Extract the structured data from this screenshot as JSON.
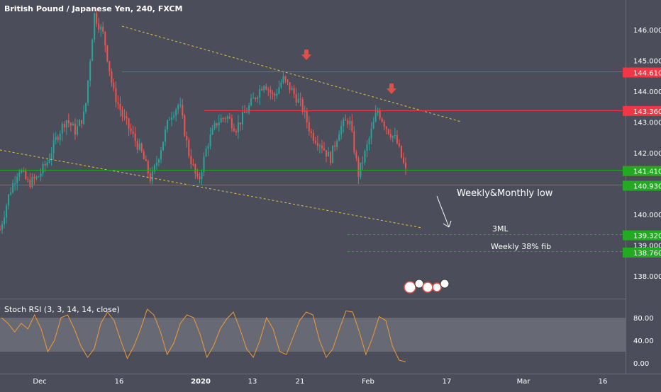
{
  "header": {
    "title": "British Pound / Japanese Yen, 240, FXCM"
  },
  "annotations": {
    "weekly_monthly_low": "Weekly&Monthly low",
    "three_ml": "3ML",
    "weekly_fib": "Weekly 38% fib",
    "idea_icon": "idea-badge-icon"
  },
  "price_axis": {
    "ticks": [
      "146.000",
      "145.000",
      "144.000",
      "143.000",
      "142.000",
      "141.000",
      "140.000",
      "139.000",
      "138.000"
    ],
    "badges": [
      {
        "value": "144.610",
        "color": "#f23645"
      },
      {
        "value": "143.360",
        "color": "#f23645"
      },
      {
        "value": "141.407",
        "color": "#f23645"
      },
      {
        "value": "141.410",
        "color": "#22ab22"
      },
      {
        "value": "140.930",
        "color": "#22ab22"
      },
      {
        "value": "139.320",
        "color": "#22ab22"
      },
      {
        "value": "138.760",
        "color": "#22ab22"
      }
    ]
  },
  "indicator": {
    "title": "Stoch RSI (3, 3, 14, 14, close)",
    "ticks": [
      "80.00",
      "40.00",
      "0.00"
    ],
    "band": [
      20,
      80
    ]
  },
  "time_axis": {
    "labels": [
      "Dec",
      "16",
      "2020",
      "13",
      "21",
      "Feb",
      "17",
      "Mar",
      "16"
    ]
  },
  "colors": {
    "background": "#4b4e5a",
    "up_candle": "#26a69a",
    "down_candle": "#ef5350",
    "red_level": "#f23645",
    "green_level": "#22ab22",
    "trendline": "#e0c341",
    "stoch_line": "#f39a35",
    "arrow": "#e0504a"
  },
  "chart_data": {
    "type": "candlestick",
    "title": "British Pound / Japanese Yen, 240, FXCM",
    "ylim": [
      137.2,
      146.8
    ],
    "resistance_levels": [
      144.61,
      143.36
    ],
    "support_levels": [
      141.41,
      140.93,
      139.32,
      138.76
    ],
    "last_price": 141.407,
    "price_path": [
      139.5,
      140.7,
      141.5,
      141.0,
      141.2,
      141.7,
      142.5,
      143.1,
      142.7,
      143.3,
      146.5,
      145.8,
      144.0,
      143.2,
      142.6,
      142.0,
      141.1,
      142.1,
      143.2,
      143.6,
      142.0,
      141.0,
      142.3,
      143.0,
      143.2,
      142.8,
      143.3,
      143.8,
      144.3,
      143.8,
      144.4,
      144.0,
      143.5,
      142.6,
      142.3,
      141.8,
      142.8,
      143.1,
      141.3,
      142.3,
      143.4,
      142.8,
      142.4,
      141.4
    ],
    "stoch_rsi": [
      80,
      70,
      55,
      70,
      60,
      85,
      60,
      20,
      40,
      80,
      85,
      60,
      30,
      10,
      25,
      70,
      90,
      75,
      40,
      8,
      30,
      60,
      95,
      85,
      55,
      15,
      35,
      70,
      85,
      80,
      50,
      10,
      30,
      60,
      78,
      90,
      60,
      25,
      10,
      40,
      80,
      60,
      20,
      15,
      45,
      75,
      90,
      85,
      40,
      10,
      25,
      60,
      92,
      90,
      55,
      15,
      45,
      82,
      75,
      30,
      5,
      2
    ]
  }
}
